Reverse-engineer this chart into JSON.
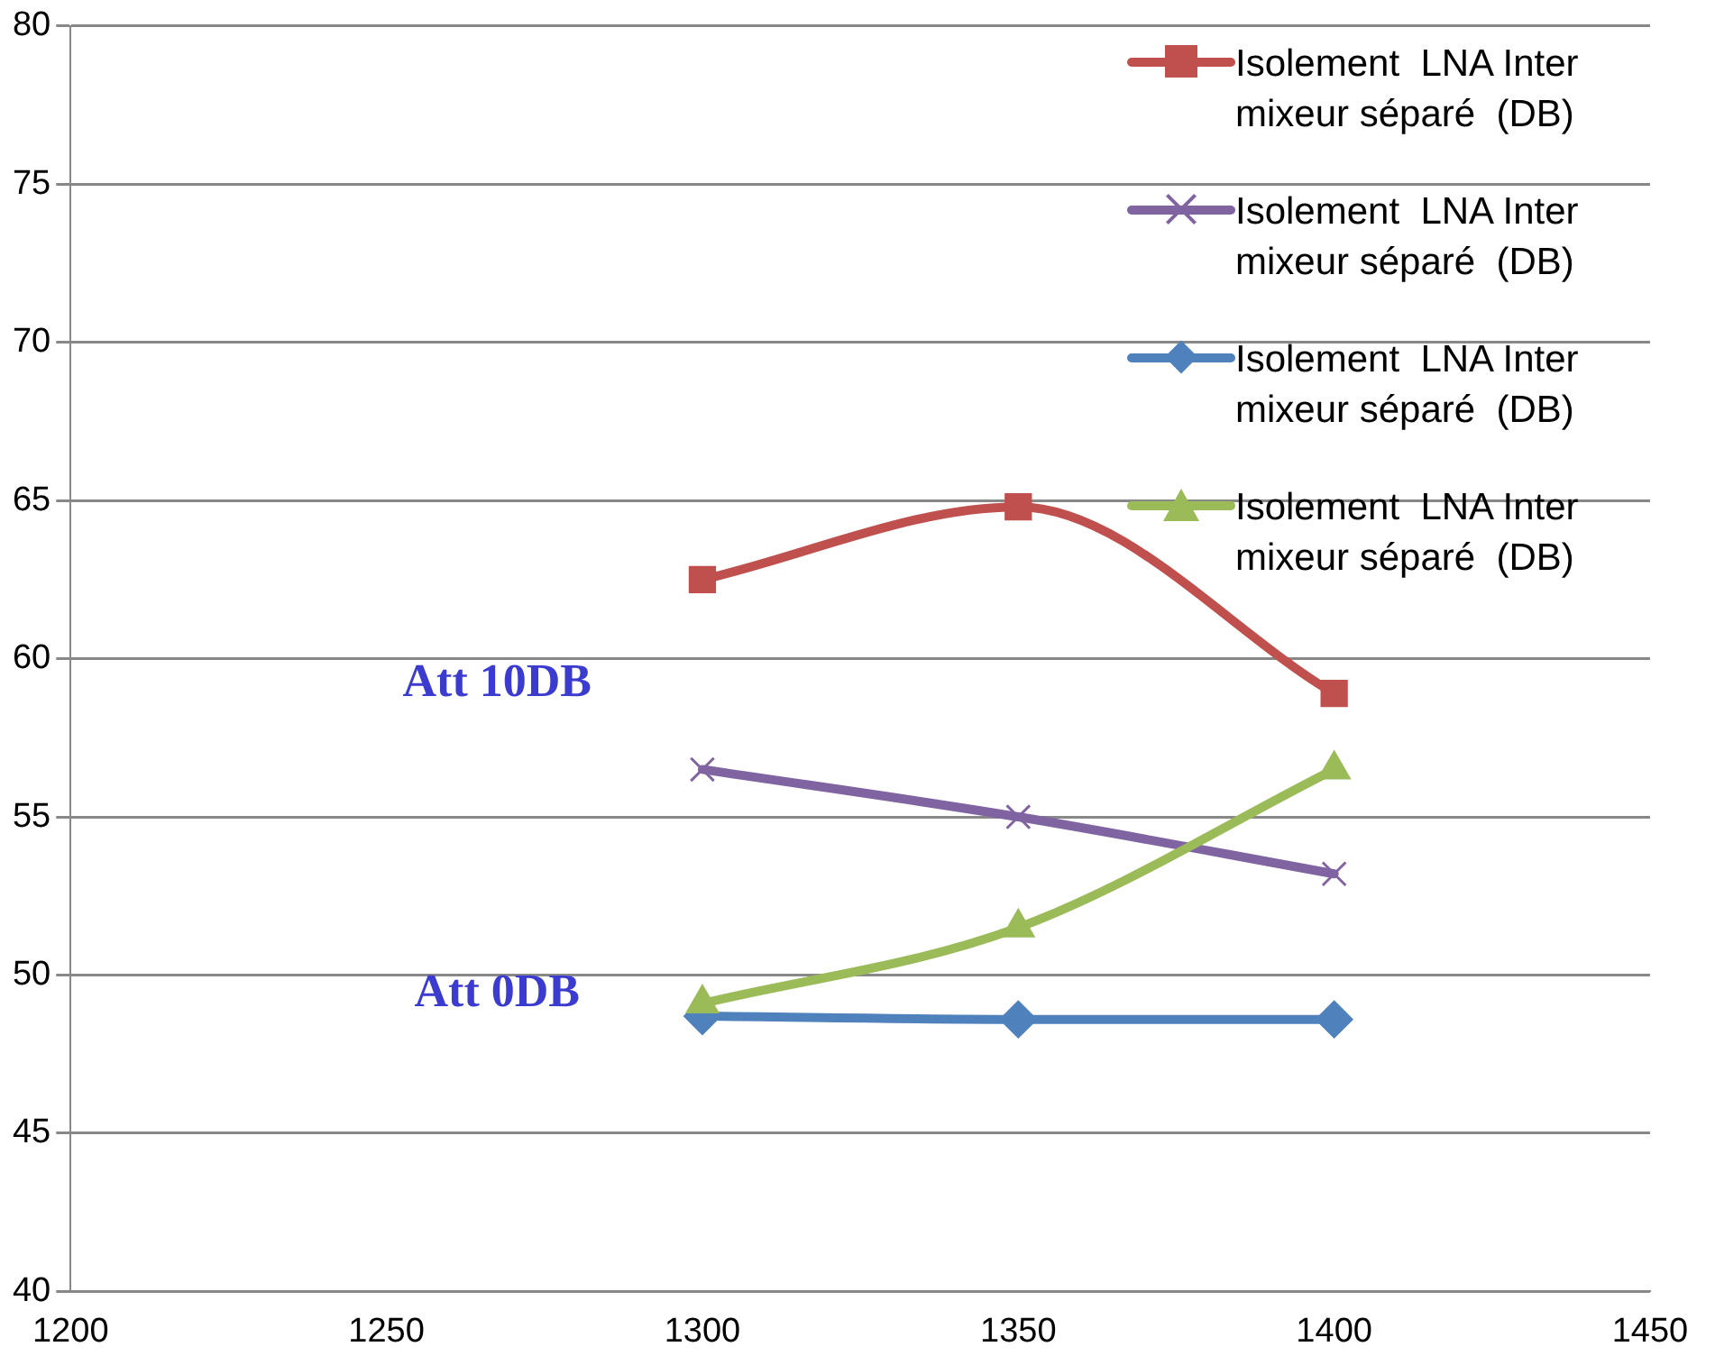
{
  "chart_data": {
    "type": "line",
    "x": [
      1300,
      1350,
      1400
    ],
    "xlim": [
      1200,
      1450
    ],
    "xticks": [
      1200,
      1250,
      1300,
      1350,
      1400,
      1450
    ],
    "ylim": [
      40,
      80
    ],
    "yticks": [
      40,
      45,
      50,
      55,
      60,
      65,
      70,
      75,
      80
    ],
    "grid": "y",
    "legend": "top right",
    "line_style": "solid",
    "series": [
      {
        "name": "Isolement  LNA Inter mixeur séparé  (DB)",
        "color": "#c0504d",
        "marker": "square",
        "values": [
          62.5,
          64.8,
          58.9
        ]
      },
      {
        "name": "Isolement  LNA Inter mixeur séparé  (DB)",
        "color": "#8064a2",
        "marker": "cross",
        "values": [
          56.5,
          55.0,
          53.2
        ]
      },
      {
        "name": "Isolement  LNA Inter mixeur séparé  (DB)",
        "color": "#4f81bd",
        "marker": "diamond",
        "values": [
          48.7,
          48.6,
          48.6
        ]
      },
      {
        "name": "Isolement  LNA Inter mixeur séparé  (DB)",
        "color": "#9bbb59",
        "marker": "triangle",
        "values": [
          49.1,
          51.5,
          56.5
        ]
      }
    ],
    "annotations": [
      "Att 10DB",
      "Att 0DB"
    ]
  }
}
